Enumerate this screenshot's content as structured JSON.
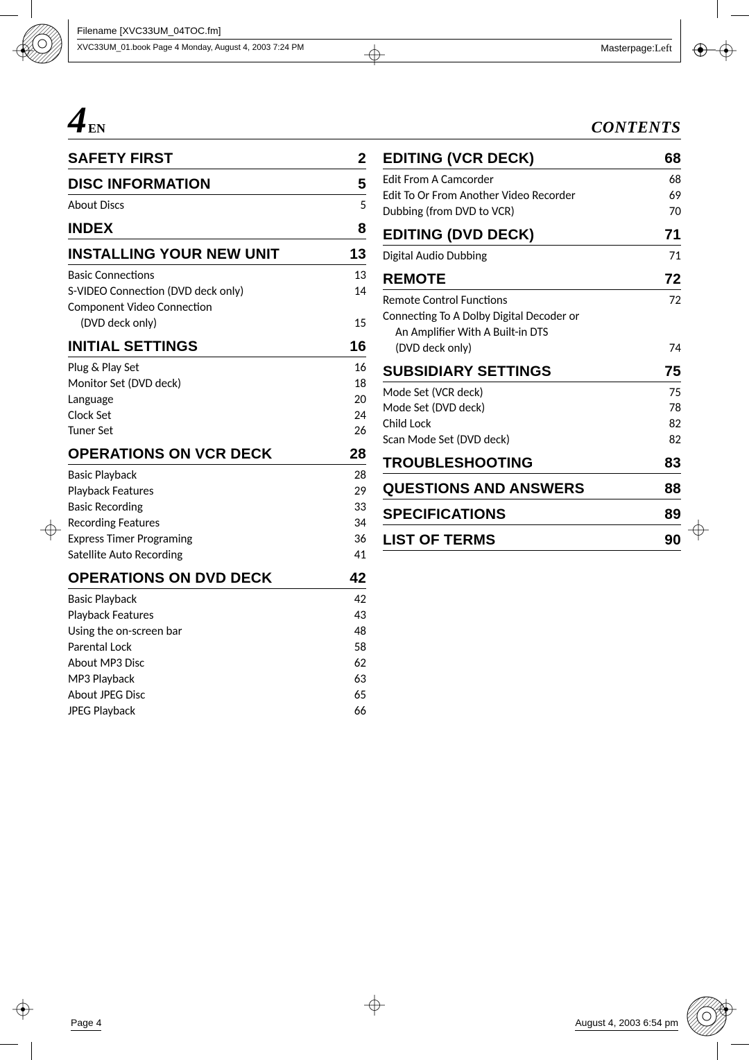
{
  "header": {
    "filename_label": "Filename",
    "filename_value": "[XVC33UM_04TOC.fm]",
    "book_line": "XVC33UM_01.book  Page 4  Monday, August 4, 2003  7:24 PM",
    "masterpage_label": "Masterpage:",
    "masterpage_value": "Left"
  },
  "page_head": {
    "number": "4",
    "en": "EN",
    "contents": "CONTENTS"
  },
  "left_sections": [
    {
      "title": "SAFETY FIRST",
      "page": "2",
      "entries": []
    },
    {
      "title": "DISC INFORMATION",
      "page": "5",
      "entries": [
        {
          "text": "About Discs",
          "page": "5"
        }
      ]
    },
    {
      "title": "INDEX",
      "page": "8",
      "entries": []
    },
    {
      "title": "INSTALLING YOUR NEW UNIT",
      "page": "13",
      "entries": [
        {
          "text": "Basic Connections",
          "page": "13"
        },
        {
          "text": "S-VIDEO Connection (DVD deck only)",
          "page": "14"
        },
        {
          "text": "Component Video Connection",
          "page": "",
          "cont": true
        },
        {
          "text": "(DVD deck only)",
          "page": "15",
          "indent": 1
        }
      ]
    },
    {
      "title": "INITIAL SETTINGS",
      "page": "16",
      "entries": [
        {
          "text": "Plug & Play Set",
          "page": "16"
        },
        {
          "text": "Monitor Set (DVD deck)",
          "page": "18"
        },
        {
          "text": "Language",
          "page": "20"
        },
        {
          "text": "Clock Set",
          "page": "24"
        },
        {
          "text": "Tuner Set",
          "page": "26"
        }
      ]
    },
    {
      "title": "OPERATIONS ON VCR DECK",
      "page": "28",
      "entries": [
        {
          "text": "Basic Playback",
          "page": "28"
        },
        {
          "text": "Playback Features",
          "page": "29"
        },
        {
          "text": "Basic Recording",
          "page": "33"
        },
        {
          "text": "Recording Features",
          "page": "34"
        },
        {
          "text": "Express Timer Programing",
          "page": "36"
        },
        {
          "text": "Satellite Auto Recording",
          "page": "41"
        }
      ]
    },
    {
      "title": "OPERATIONS ON DVD DECK",
      "page": "42",
      "entries": [
        {
          "text": "Basic Playback",
          "page": "42"
        },
        {
          "text": "Playback Features",
          "page": "43"
        },
        {
          "text": "Using the on-screen bar",
          "page": "48"
        },
        {
          "text": "Parental Lock",
          "page": "58"
        },
        {
          "text": "About MP3 Disc",
          "page": "62"
        },
        {
          "text": "MP3 Playback",
          "page": "63"
        },
        {
          "text": "About JPEG Disc",
          "page": "65"
        },
        {
          "text": "JPEG Playback",
          "page": "66"
        }
      ]
    }
  ],
  "right_sections": [
    {
      "title": "EDITING (VCR DECK)",
      "page": "68",
      "entries": [
        {
          "text": "Edit From A Camcorder",
          "page": "68"
        },
        {
          "text": "Edit To Or From Another Video Recorder",
          "page": "69"
        },
        {
          "text": "Dubbing (from DVD to VCR)",
          "page": "70"
        }
      ]
    },
    {
      "title": "EDITING (DVD DECK)",
      "page": "71",
      "entries": [
        {
          "text": "Digital Audio Dubbing",
          "page": "71"
        }
      ]
    },
    {
      "title": "REMOTE",
      "page": "72",
      "entries": [
        {
          "text": "Remote Control Functions",
          "page": "72"
        },
        {
          "text": "Connecting To A Dolby Digital Decoder or",
          "page": "",
          "cont": true
        },
        {
          "text": "An Amplifier With A Built-in DTS",
          "page": "",
          "indent": 1,
          "cont": true
        },
        {
          "text": "(DVD deck only)",
          "page": "74",
          "indent": 1
        }
      ]
    },
    {
      "title": "SUBSIDIARY SETTINGS",
      "page": "75",
      "entries": [
        {
          "text": "Mode Set (VCR deck)",
          "page": "75"
        },
        {
          "text": "Mode Set (DVD deck)",
          "page": "78"
        },
        {
          "text": "Child Lock",
          "page": "82"
        },
        {
          "text": "Scan Mode Set (DVD deck)",
          "page": "82"
        }
      ]
    },
    {
      "title": "TROUBLESHOOTING",
      "page": "83",
      "entries": []
    },
    {
      "title": "QUESTIONS AND ANSWERS",
      "page": "88",
      "entries": []
    },
    {
      "title": "SPECIFICATIONS",
      "page": "89",
      "entries": []
    },
    {
      "title": "LIST OF TERMS",
      "page": "90",
      "entries": []
    }
  ],
  "footer": {
    "left": "Page 4",
    "right": "August 4, 2003 6:54 pm"
  }
}
